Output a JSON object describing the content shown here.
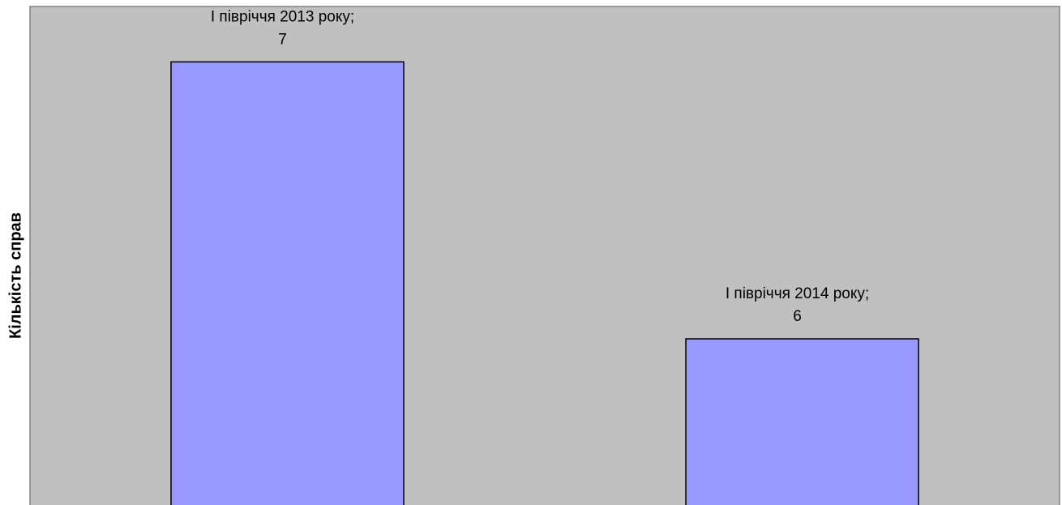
{
  "chart_data": {
    "type": "bar",
    "y_label": "Кількість справ",
    "categories": [
      "І півріччя 2013 року;",
      "І півріччя 2014 року;"
    ],
    "values": [
      7,
      6
    ],
    "color": "#9999ff",
    "ylim": [
      5.4,
      7.2
    ],
    "grid": false
  }
}
